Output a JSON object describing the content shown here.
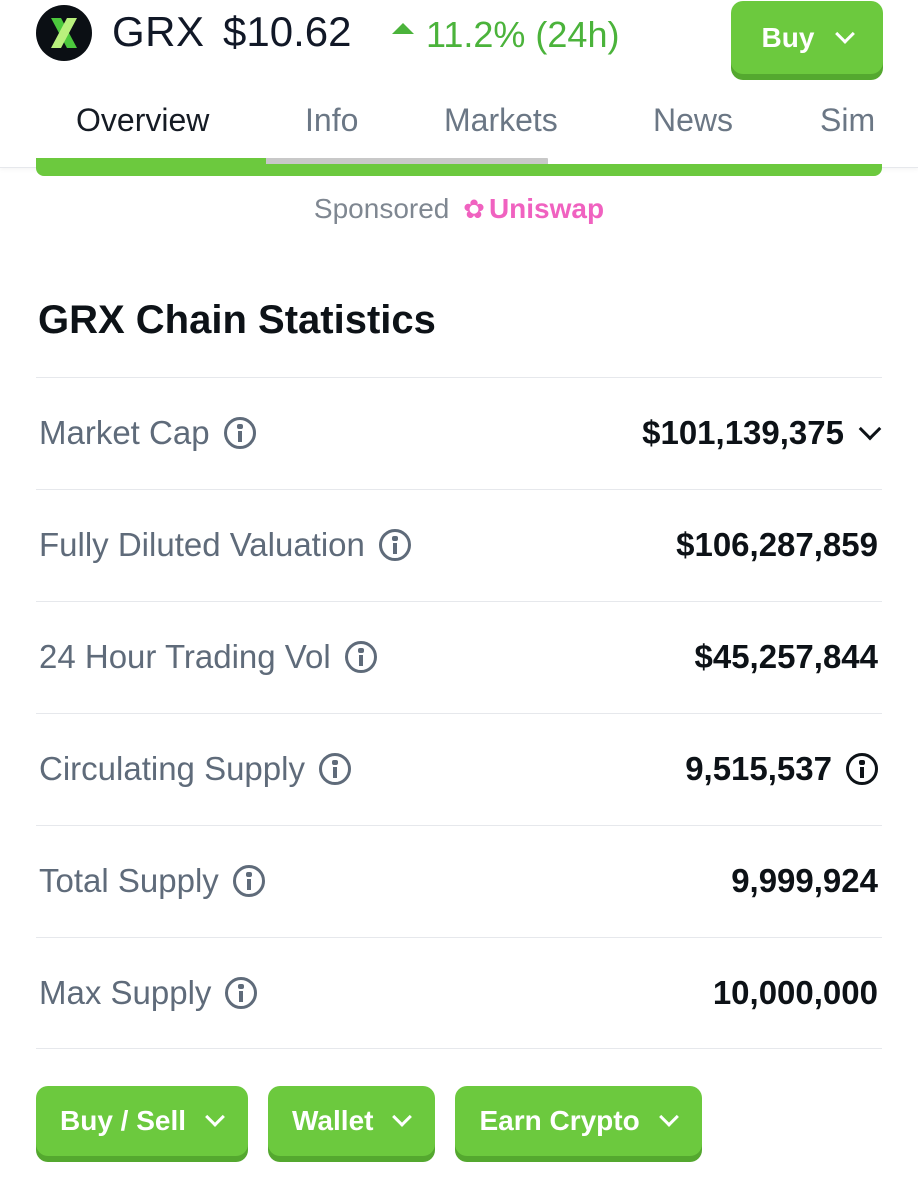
{
  "header": {
    "ticker": "GRX",
    "price": "$10.62",
    "change": "11.2% (24h)",
    "buy_label": "Buy"
  },
  "tabs": [
    {
      "label": "Overview",
      "active": true
    },
    {
      "label": "Info",
      "active": false
    },
    {
      "label": "Markets",
      "active": false
    },
    {
      "label": "News",
      "active": false
    },
    {
      "label": "Sim",
      "active": false
    }
  ],
  "sponsored": {
    "label": "Sponsored",
    "brand": "Uniswap",
    "brand_icon": "uniswap-unicorn-icon"
  },
  "section_title": "GRX Chain Statistics",
  "stats": [
    {
      "label": "Market Cap",
      "value": "$101,139,375"
    },
    {
      "label": "Fully Diluted Valuation",
      "value": "$106,287,859"
    },
    {
      "label": "24 Hour Trading Vol",
      "value": "$45,257,844"
    },
    {
      "label": "Circulating Supply",
      "value": "9,515,537"
    },
    {
      "label": "Total Supply",
      "value": "9,999,924"
    },
    {
      "label": "Max Supply",
      "value": "10,000,000"
    }
  ],
  "bottom_buttons": [
    {
      "label": "Buy / Sell"
    },
    {
      "label": "Wallet"
    },
    {
      "label": "Earn Crypto"
    }
  ],
  "colors": {
    "accent_green": "#6cc93e",
    "up_green": "#4bb33b",
    "brand_pink": "#f062c0"
  }
}
